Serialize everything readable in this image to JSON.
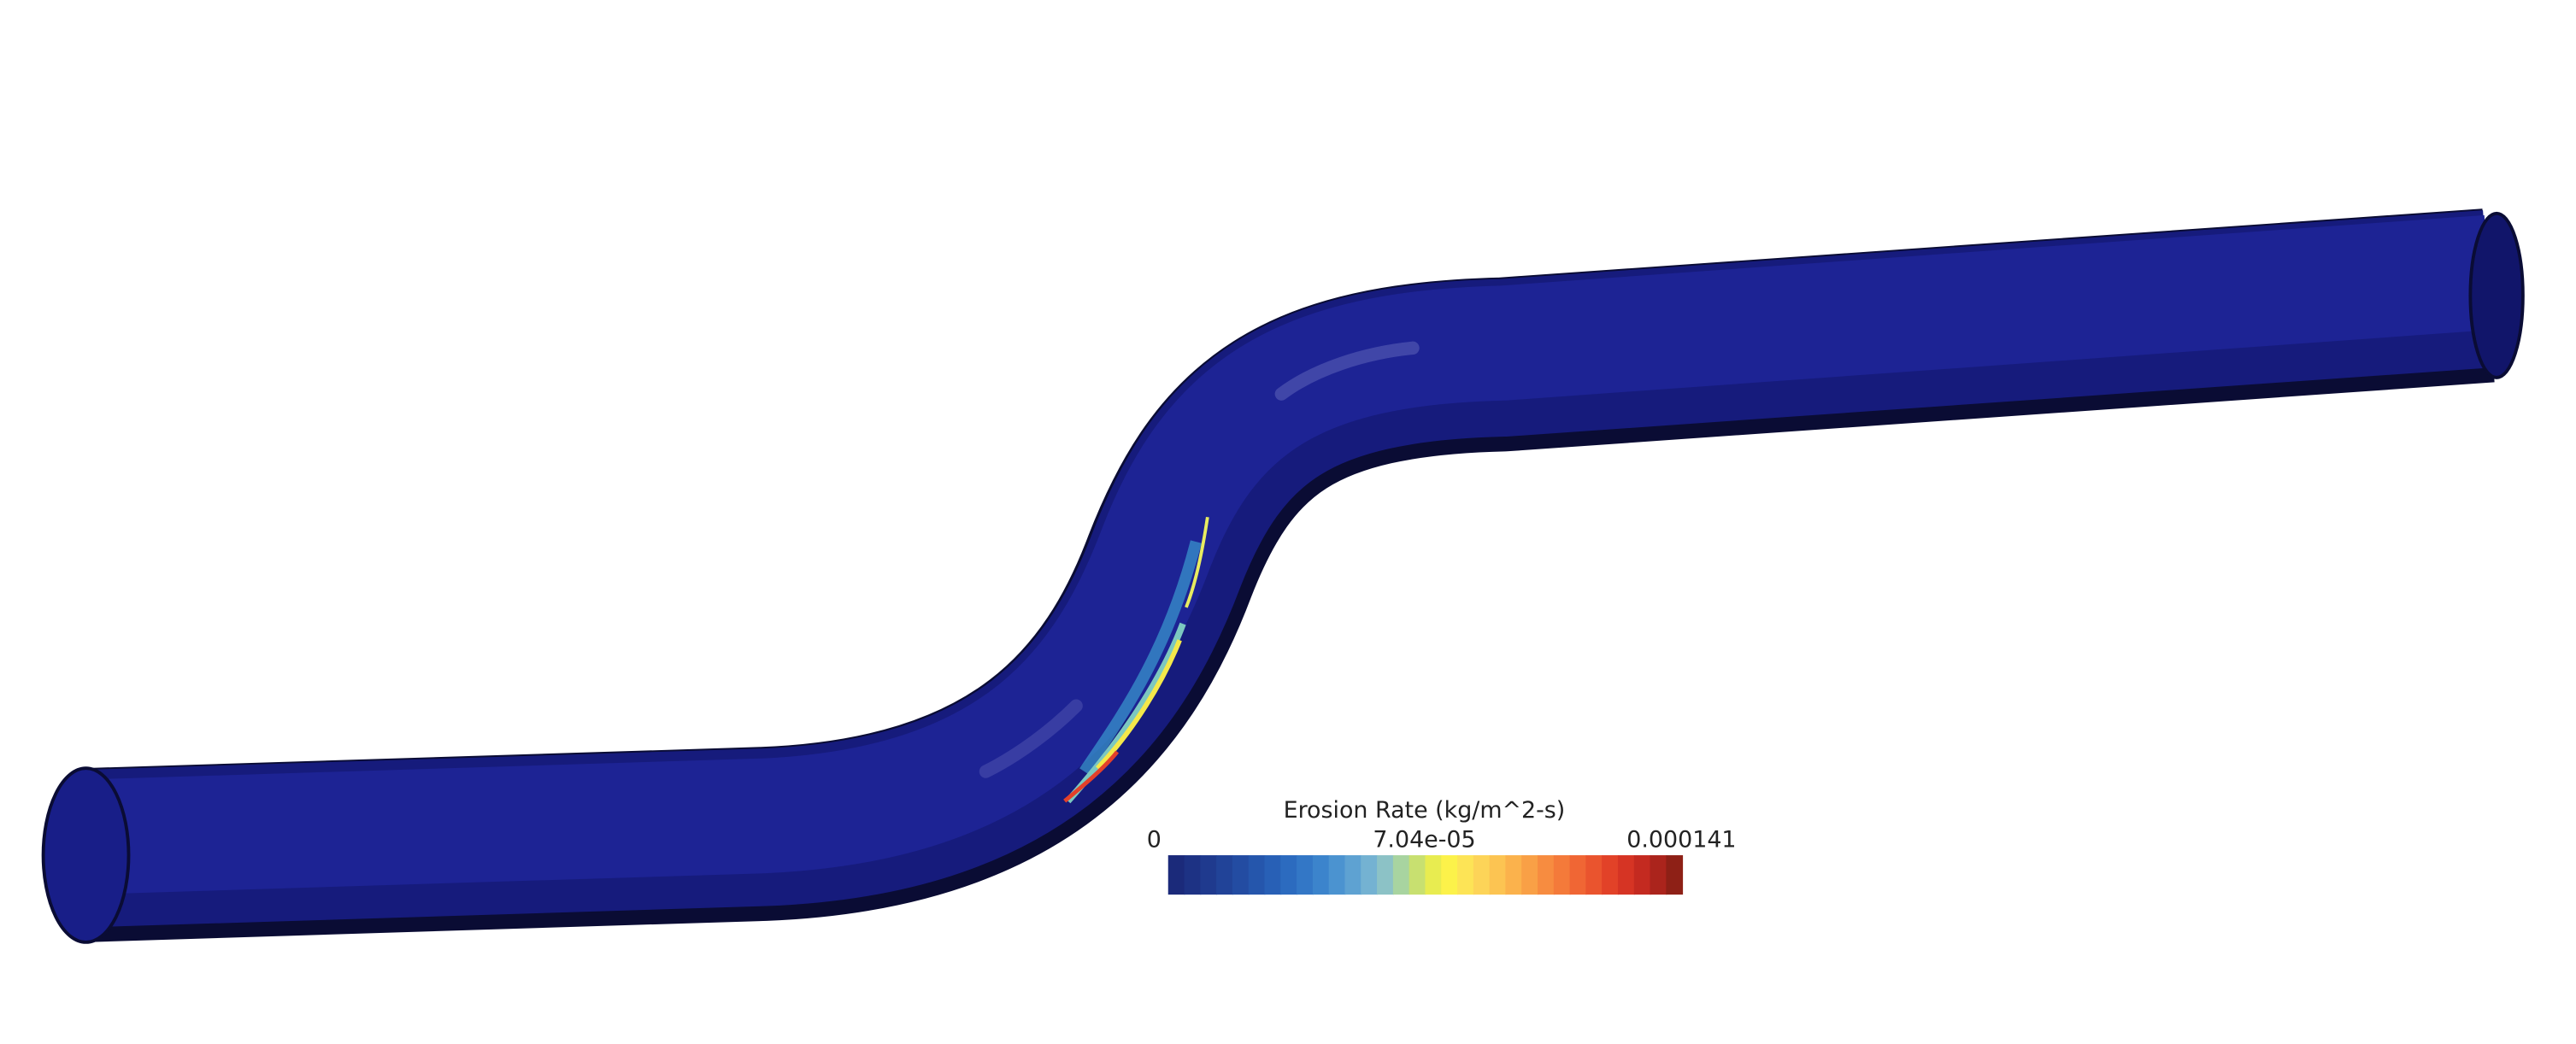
{
  "legend": {
    "title": "Erosion Rate (kg/m^2-s)",
    "tick_labels": [
      "0",
      "7.04e-05",
      "0.000141"
    ]
  }
}
